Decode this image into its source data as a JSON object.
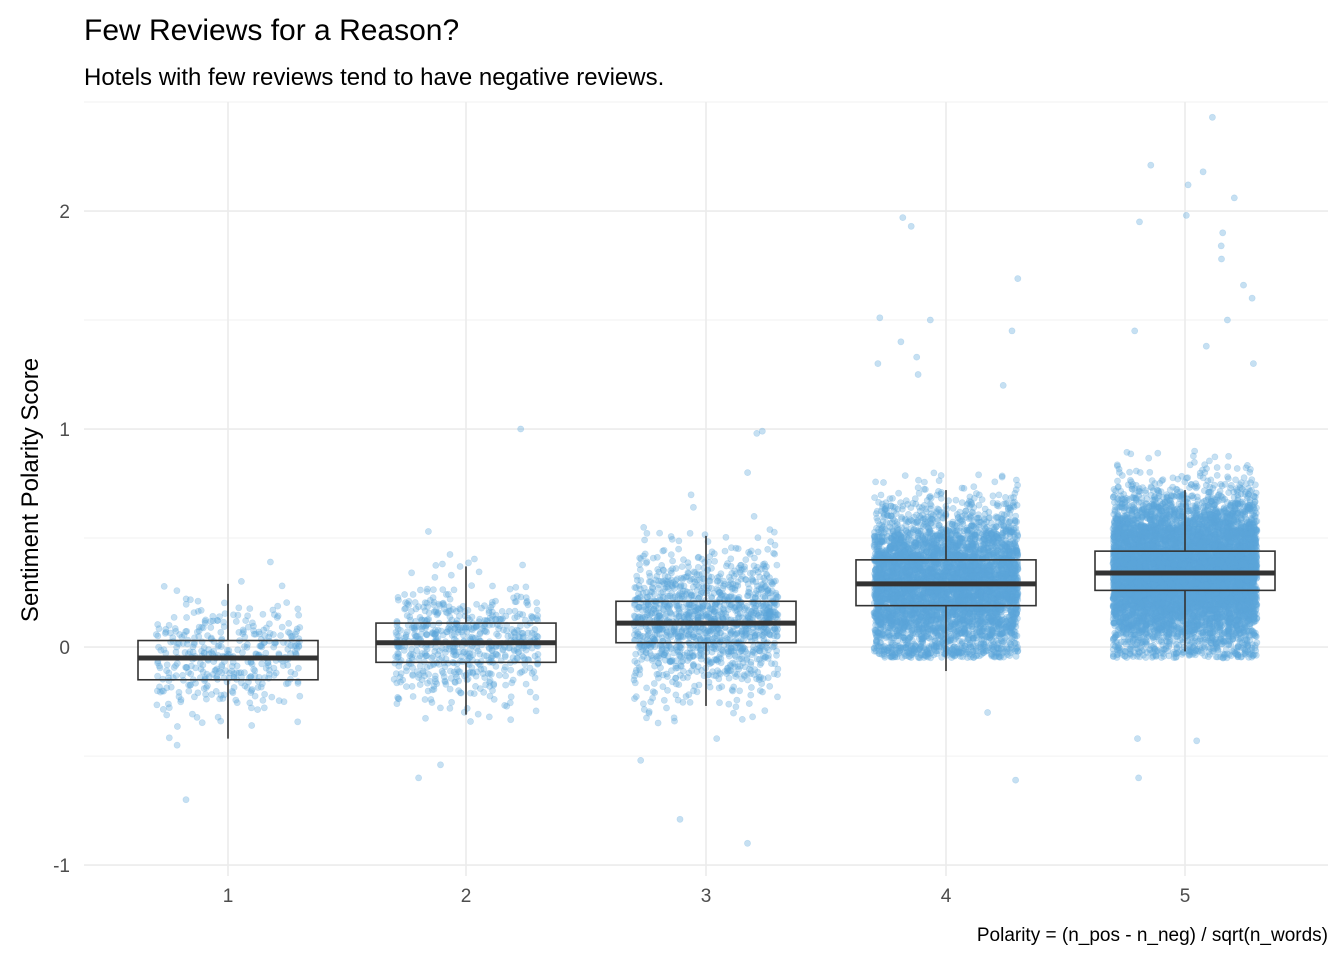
{
  "chart_data": {
    "type": "boxplot",
    "title": "Few Reviews for a Reason?",
    "subtitle": "Hotels with few reviews tend to have negative reviews.",
    "xlabel": "",
    "ylabel": "Sentiment Polarity Score",
    "caption": "Polarity = (n_pos - n_neg) / sqrt(n_words)",
    "categories": [
      "1",
      "2",
      "3",
      "4",
      "5"
    ],
    "ylim": [
      -1.05,
      2.5
    ],
    "yticks": [
      -1,
      0,
      1,
      2
    ],
    "grid": true,
    "legend": "none",
    "point_color": "#5DA5DA",
    "point_alpha": 0.35,
    "boxes": [
      {
        "category": "1",
        "whisker_low": -0.42,
        "q1": -0.15,
        "median": -0.05,
        "q3": 0.03,
        "whisker_high": 0.29
      },
      {
        "category": "2",
        "whisker_low": -0.31,
        "q1": -0.07,
        "median": 0.02,
        "q3": 0.11,
        "whisker_high": 0.37
      },
      {
        "category": "3",
        "whisker_low": -0.27,
        "q1": 0.02,
        "median": 0.11,
        "q3": 0.21,
        "whisker_high": 0.51
      },
      {
        "category": "4",
        "whisker_low": -0.11,
        "q1": 0.19,
        "median": 0.29,
        "q3": 0.4,
        "whisker_high": 0.72
      },
      {
        "category": "5",
        "whisker_low": -0.02,
        "q1": 0.26,
        "median": 0.34,
        "q3": 0.44,
        "whisker_high": 0.72
      }
    ],
    "point_clouds": [
      {
        "category": "1",
        "n": 380,
        "center": -0.05,
        "spread": 0.13,
        "low": -0.46,
        "high": 0.4
      },
      {
        "category": "2",
        "n": 620,
        "center": 0.02,
        "spread": 0.14,
        "low": -0.36,
        "high": 0.5
      },
      {
        "category": "3",
        "n": 1300,
        "center": 0.11,
        "spread": 0.16,
        "low": -0.42,
        "high": 0.7
      },
      {
        "category": "4",
        "n": 5000,
        "center": 0.29,
        "spread": 0.17,
        "low": -0.05,
        "high": 0.8
      },
      {
        "category": "5",
        "n": 8000,
        "center": 0.34,
        "spread": 0.17,
        "low": -0.05,
        "high": 0.9
      }
    ],
    "outliers": [
      {
        "category": "1",
        "points": [
          -0.7,
          -0.45,
          0.39
        ]
      },
      {
        "category": "2",
        "points": [
          -0.6,
          -0.54,
          1.0,
          0.53
        ]
      },
      {
        "category": "3",
        "points": [
          -0.9,
          -0.79,
          -0.52,
          0.98,
          0.99,
          0.8
        ]
      },
      {
        "category": "4",
        "points": [
          -0.61,
          -0.3,
          1.97,
          1.93,
          1.69,
          1.51,
          1.5,
          1.45,
          1.4,
          1.3,
          1.25,
          1.33,
          1.2
        ]
      },
      {
        "category": "5",
        "points": [
          -0.6,
          -0.43,
          -0.42,
          2.43,
          2.21,
          2.18,
          2.12,
          2.06,
          1.98,
          1.95,
          1.9,
          1.84,
          1.78,
          1.66,
          1.6,
          1.5,
          1.45,
          1.38,
          1.3
        ]
      }
    ]
  }
}
